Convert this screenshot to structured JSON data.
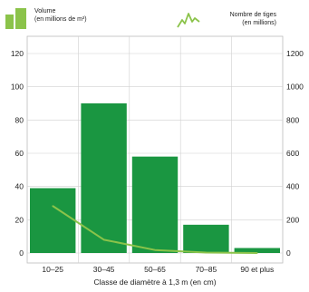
{
  "chart_data": {
    "type": "bar",
    "categories": [
      "10–25",
      "30–45",
      "50–65",
      "70–85",
      "90 et plus"
    ],
    "series": [
      {
        "name": "Volume (en millions de m³)",
        "type": "bar",
        "axis": "left",
        "color": "#1a9641",
        "values": [
          39,
          90,
          58,
          17,
          3
        ]
      },
      {
        "name": "Nombre de tiges (en millions)",
        "type": "line",
        "axis": "right",
        "color": "#8bc34a",
        "values": [
          283,
          80,
          18,
          3,
          0
        ]
      }
    ],
    "yleft": {
      "ticks": [
        "0",
        "20",
        "40",
        "60",
        "80",
        "100",
        "120"
      ],
      "lim": [
        0,
        120
      ]
    },
    "yright": {
      "ticks": [
        "0",
        "200",
        "400",
        "600",
        "800",
        "1000",
        "1200"
      ],
      "lim": [
        0,
        1200
      ]
    },
    "xlabel": "Classe de diamètre à 1,3 m (en cm)",
    "grid": true
  },
  "legend": {
    "left_line1": "Volume",
    "left_line2": "(en millions de m³)",
    "right_line1": "Nombre de tiges",
    "right_line2": "(en millions)"
  }
}
